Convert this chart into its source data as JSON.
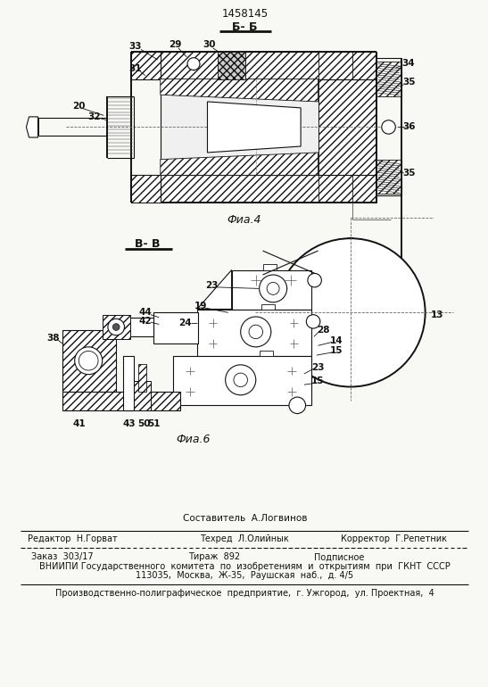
{
  "title_number": "1458145",
  "section_label_top": "Б- Б",
  "section_label_bottom": "В- В",
  "fig4_label": "Фиа.4",
  "fig6_label": "Фиа.6",
  "footer_line1": "Составитель  А.Логвинов",
  "footer_line2_left": "Редактор  Н.Горват",
  "footer_line2_mid": "Техред  Л.Олийнык",
  "footer_line2_right": "Корректор  Г.Репетник",
  "footer_line3_left": "Заказ  303/17",
  "footer_line3_mid": "Тираж  892",
  "footer_line3_right": "Подписное",
  "footer_line4": "ВНИИПИ Государственного  комитета  по  изобретениям  и  открытиям  при  ГКНТ  СССР",
  "footer_line5": "113035,  Москва,  Ж-35,  Раушская  наб.,  д. 4/5",
  "footer_line6": "Производственно-полиграфическое  предприятие,  г. Ужгород,  ул. Проектная,  4",
  "bg_color": "#f8f8f5",
  "line_color": "#111111"
}
